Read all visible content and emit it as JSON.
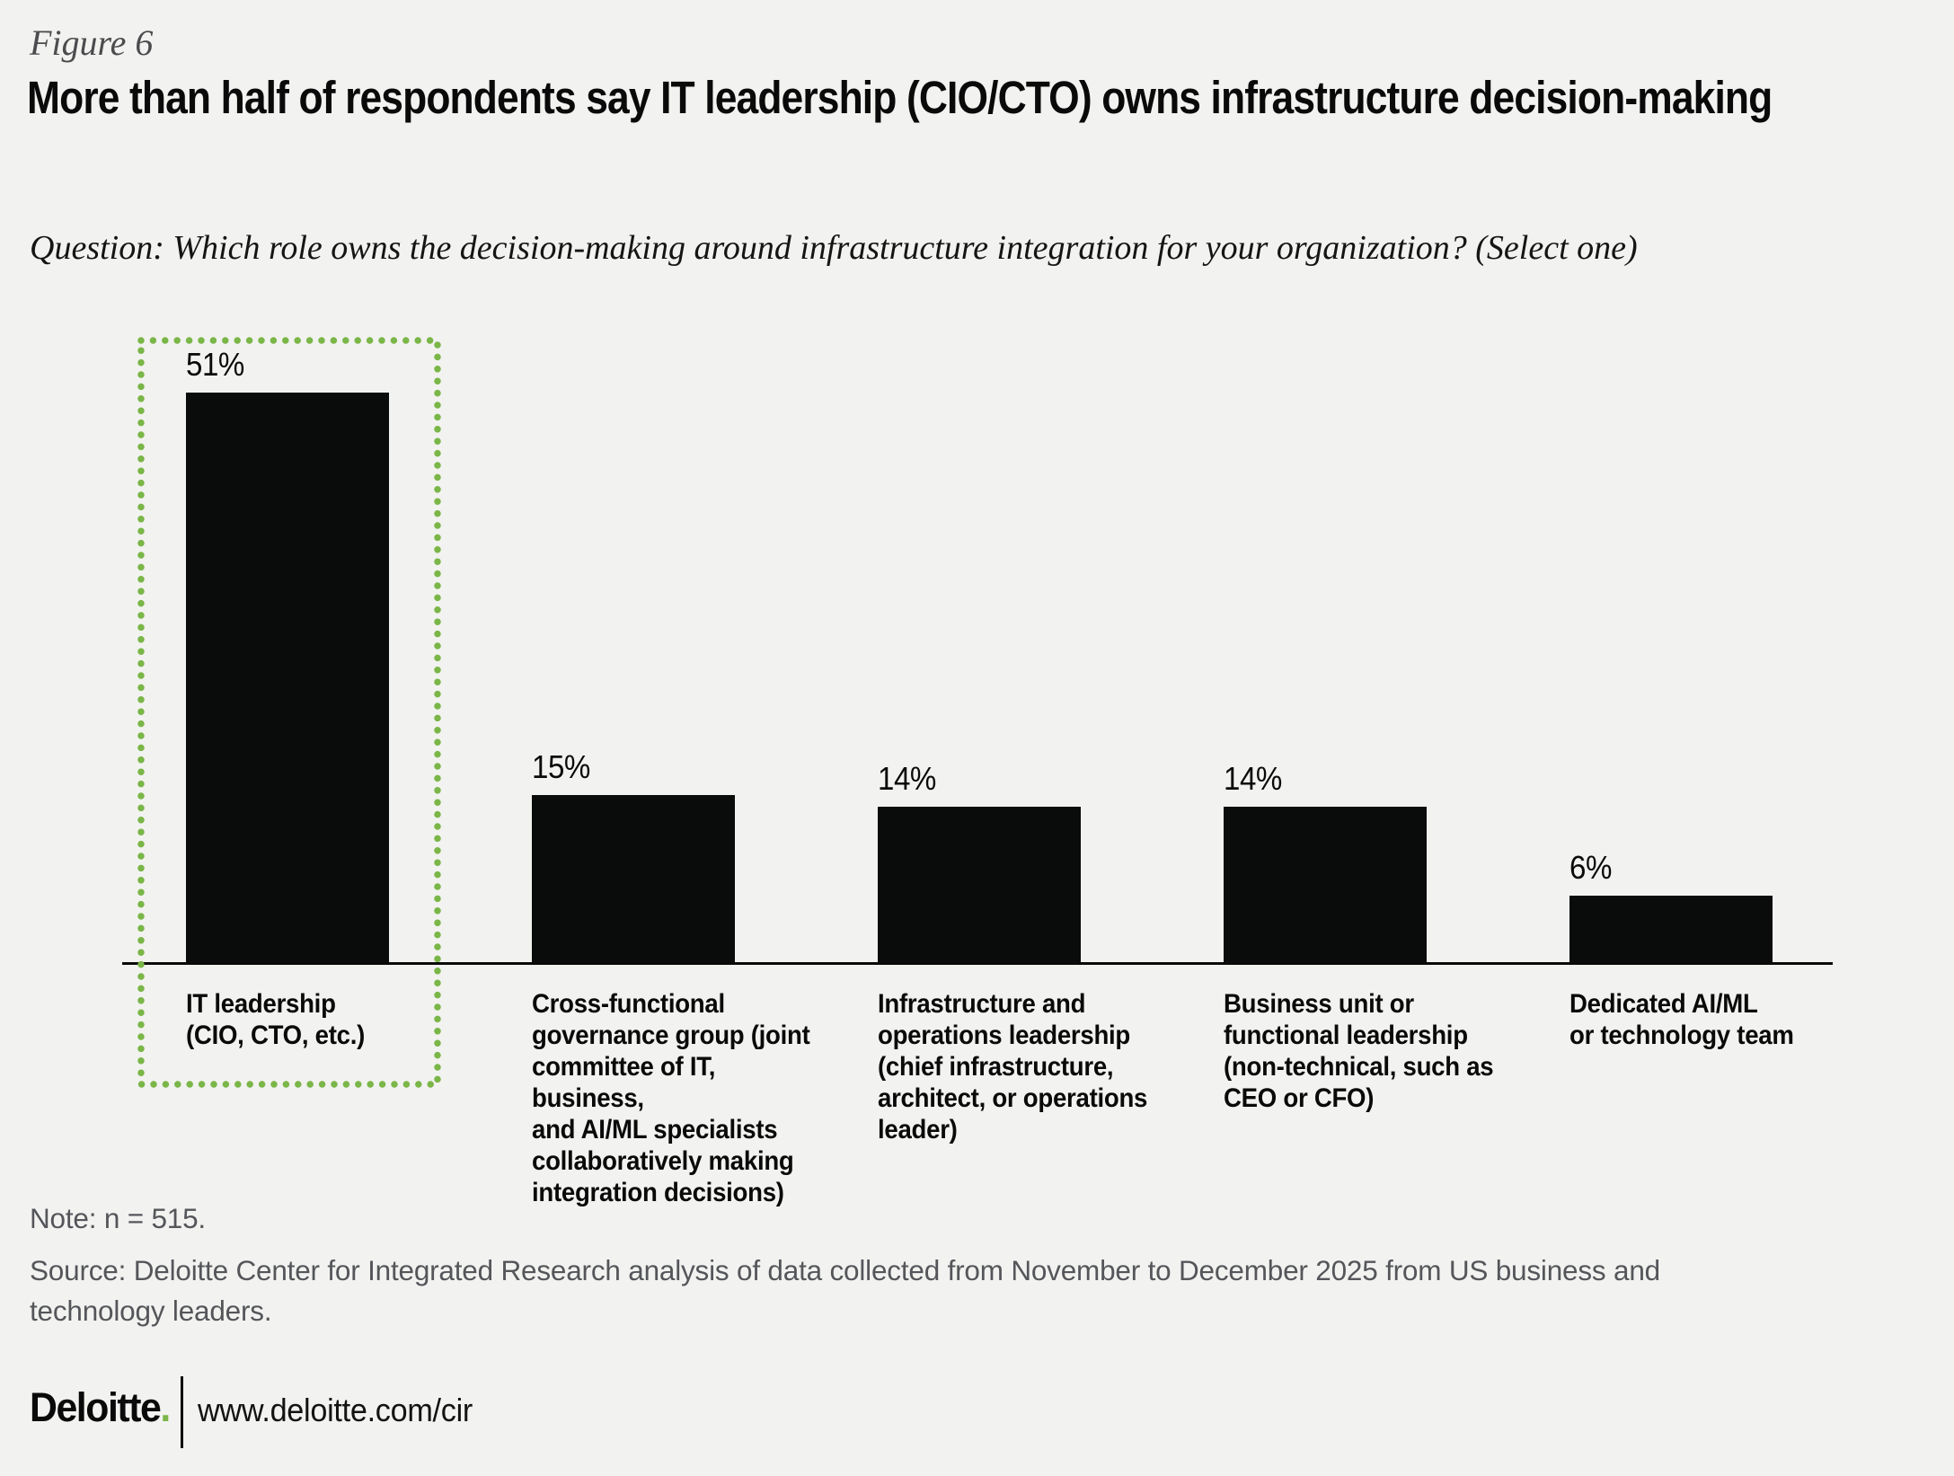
{
  "colors": {
    "background": "#f2f2f0",
    "bar": "#0a0c0b",
    "highlight_green": "#7ab648",
    "note_gray": "#54565a"
  },
  "figure_label": "Figure 6",
  "title": "More than half of respondents say IT leadership (CIO/CTO) owns infrastructure decision-making",
  "question": "Question: Which role owns the decision-making around infrastructure integration for your organization? (Select one)",
  "chart_data": {
    "type": "bar",
    "title": "Which role owns the decision-making around infrastructure integration for your organization? (Select one)",
    "categories": [
      "IT leadership (CIO, CTO, etc.)",
      "Cross-functional governance group (joint committee of IT, business, and AI/ML specialists collaboratively making integration decisions)",
      "Infrastructure and operations leadership (chief infrastructure, architect, or operations leader)",
      "Business unit or functional leadership (non-technical, such as CEO or CFO)",
      "Dedicated AI/ML or technology team"
    ],
    "category_label_lines": [
      "IT leadership\n(CIO, CTO, etc.)",
      "Cross-functional\ngovernance group (joint\ncommittee of IT, business,\nand AI/ML specialists\ncollaboratively making\nintegration decisions)",
      "Infrastructure and\noperations leadership\n(chief infrastructure,\narchitect, or operations\nleader)",
      "Business unit or\nfunctional leadership\n(non-technical, such as\nCEO or CFO)",
      "Dedicated AI/ML\nor technology team"
    ],
    "values": [
      51,
      15,
      14,
      14,
      6
    ],
    "value_labels": [
      "51%",
      "15%",
      "14%",
      "14%",
      "6%"
    ],
    "unit": "%",
    "ylim": [
      0,
      55
    ],
    "grid": false,
    "legend": false,
    "highlighted_index": 0,
    "highlight_style": "green dotted outline around first bar and its label"
  },
  "note": "Note: n = 515.",
  "source": "Source: Deloitte Center for Integrated Research analysis of data collected from November to December 2025 from US business and technology leaders.",
  "footer": {
    "brand": "Deloitte",
    "dot": ".",
    "url": "www.deloitte.com/cir"
  }
}
